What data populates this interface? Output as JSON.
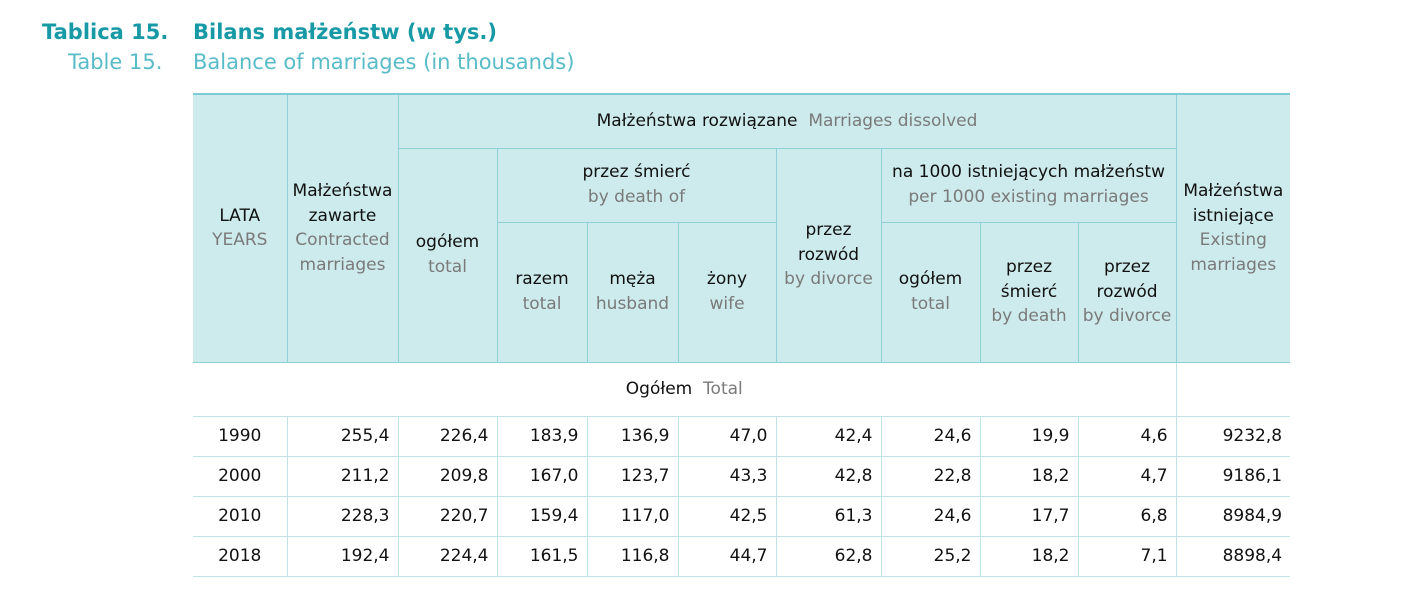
{
  "title": {
    "label_pl": "Tablica 15.",
    "label_en": "Table 15.",
    "text_pl": "Bilans małżeństw (w tys.)",
    "text_en": "Balance of marriages (in thousands)"
  },
  "headers": {
    "years": {
      "pl": "LATA",
      "en": "YEARS"
    },
    "contracted": {
      "pl": "Małżeństwa zawarte",
      "en": "Contracted marriages"
    },
    "dissolved": {
      "pl": "Małżeństwa rozwiązane",
      "en": "Marriages dissolved"
    },
    "total": {
      "pl": "ogółem",
      "en": "total"
    },
    "by_death": {
      "pl": "przez śmierć",
      "en": "by death of"
    },
    "razem": {
      "pl": "razem",
      "en": "total"
    },
    "husband": {
      "pl": "męża",
      "en": "husband"
    },
    "wife": {
      "pl": "żony",
      "en": "wife"
    },
    "divorce": {
      "pl": "przez rozwód",
      "en": "by divorce"
    },
    "per1000": {
      "pl": "na 1000 istniejących małżeństw",
      "en": "per 1000 existing marriages"
    },
    "per_total": {
      "pl": "ogółem",
      "en": "total"
    },
    "per_death": {
      "pl": "przez śmierć",
      "en": "by death"
    },
    "per_divorce": {
      "pl": "przez rozwód",
      "en": "by divorce"
    },
    "existing": {
      "pl": "Małżeństwa istniejące",
      "en": "Existing marriages"
    }
  },
  "section": {
    "pl": "Ogółem",
    "en": "Total"
  },
  "rows": [
    [
      "1990",
      "255,4",
      "226,4",
      "183,9",
      "136,9",
      "47,0",
      "42,4",
      "24,6",
      "19,9",
      "4,6",
      "9232,8"
    ],
    [
      "2000",
      "211,2",
      "209,8",
      "167,0",
      "123,7",
      "43,3",
      "42,8",
      "22,8",
      "18,2",
      "4,7",
      "9186,1"
    ],
    [
      "2010",
      "228,3",
      "220,7",
      "159,4",
      "117,0",
      "42,5",
      "61,3",
      "24,6",
      "17,7",
      "6,8",
      "8984,9"
    ],
    [
      "2018",
      "192,4",
      "224,4",
      "161,5",
      "116,8",
      "44,7",
      "62,8",
      "25,2",
      "18,2",
      "7,1",
      "8898,4"
    ]
  ]
}
